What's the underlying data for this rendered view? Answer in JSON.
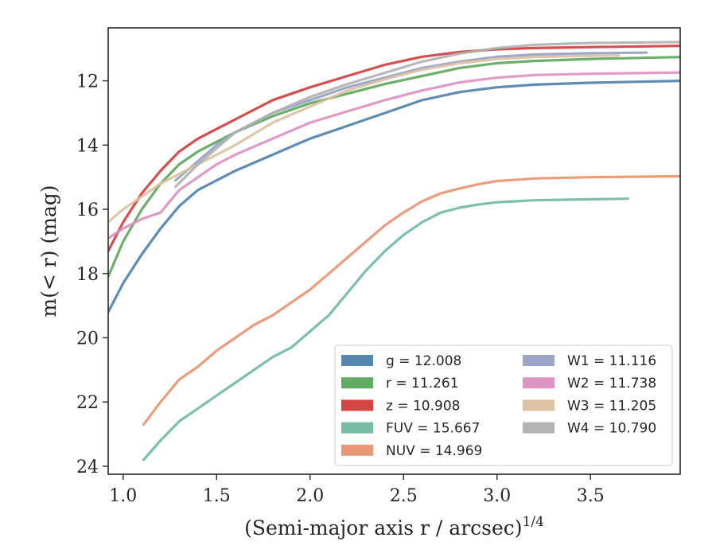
{
  "chart_data": {
    "type": "line",
    "title": "",
    "xlabel": "(Semi-major axis r / arcsec)",
    "xlabel_exponent": "1/4",
    "ylabel": "m(< r) (mag)",
    "xlim": [
      0.92,
      3.98
    ],
    "ylim": [
      24.25,
      10.35
    ],
    "y_inverted": true,
    "grid": false,
    "legend_position": "lower-right",
    "x_ticks": [
      {
        "value": 1.0,
        "label": "1.0"
      },
      {
        "value": 1.5,
        "label": "1.5"
      },
      {
        "value": 2.0,
        "label": "2.0"
      },
      {
        "value": 2.5,
        "label": "2.5"
      },
      {
        "value": 3.0,
        "label": "3.0"
      },
      {
        "value": 3.5,
        "label": "3.5"
      }
    ],
    "y_ticks": [
      {
        "value": 12,
        "label": "12"
      },
      {
        "value": 14,
        "label": "14"
      },
      {
        "value": 16,
        "label": "16"
      },
      {
        "value": 18,
        "label": "18"
      },
      {
        "value": 20,
        "label": "20"
      },
      {
        "value": 22,
        "label": "22"
      },
      {
        "value": 24,
        "label": "24"
      }
    ],
    "series": [
      {
        "name": "g",
        "legend_label": "g = 12.008",
        "color": "#4c7fab",
        "x": [
          0.92,
          1.0,
          1.1,
          1.2,
          1.3,
          1.4,
          1.5,
          1.6,
          1.8,
          2.0,
          2.2,
          2.4,
          2.6,
          2.8,
          3.0,
          3.2,
          3.5,
          3.98
        ],
        "y": [
          19.2,
          18.3,
          17.4,
          16.6,
          15.9,
          15.4,
          15.1,
          14.8,
          14.3,
          13.8,
          13.4,
          13.0,
          12.6,
          12.35,
          12.2,
          12.12,
          12.06,
          12.0
        ]
      },
      {
        "name": "r",
        "legend_label": "r = 11.261",
        "color": "#5aa65a",
        "x": [
          0.92,
          1.0,
          1.1,
          1.2,
          1.3,
          1.4,
          1.5,
          1.6,
          1.8,
          2.0,
          2.2,
          2.4,
          2.6,
          2.8,
          3.0,
          3.2,
          3.5,
          3.98
        ],
        "y": [
          18.1,
          17.0,
          16.0,
          15.2,
          14.6,
          14.2,
          13.9,
          13.6,
          13.1,
          12.7,
          12.4,
          12.1,
          11.85,
          11.6,
          11.45,
          11.38,
          11.32,
          11.26
        ]
      },
      {
        "name": "z",
        "legend_label": "z = 10.908",
        "color": "#d23c3c",
        "x": [
          0.92,
          1.0,
          1.1,
          1.2,
          1.3,
          1.4,
          1.5,
          1.6,
          1.8,
          2.0,
          2.2,
          2.4,
          2.6,
          2.8,
          3.0,
          3.2,
          3.5,
          3.98
        ],
        "y": [
          17.3,
          16.4,
          15.5,
          14.8,
          14.2,
          13.8,
          13.5,
          13.2,
          12.6,
          12.2,
          11.85,
          11.5,
          11.25,
          11.1,
          11.02,
          10.98,
          10.95,
          10.91
        ]
      },
      {
        "name": "FUV",
        "legend_label": "FUV = 15.667",
        "color": "#6fb9a1",
        "x": [
          1.11,
          1.2,
          1.3,
          1.4,
          1.5,
          1.6,
          1.7,
          1.8,
          1.9,
          2.0,
          2.1,
          2.2,
          2.3,
          2.4,
          2.5,
          2.6,
          2.7,
          2.8,
          2.9,
          3.0,
          3.2,
          3.4,
          3.7
        ],
        "y": [
          23.8,
          23.2,
          22.6,
          22.2,
          21.8,
          21.4,
          21.0,
          20.6,
          20.3,
          19.8,
          19.3,
          18.6,
          17.9,
          17.3,
          16.8,
          16.4,
          16.1,
          15.95,
          15.85,
          15.78,
          15.72,
          15.7,
          15.67
        ]
      },
      {
        "name": "NUV",
        "legend_label": "NUV = 14.969",
        "color": "#e8926e",
        "x": [
          1.11,
          1.2,
          1.3,
          1.4,
          1.5,
          1.6,
          1.7,
          1.8,
          1.9,
          2.0,
          2.1,
          2.2,
          2.3,
          2.4,
          2.5,
          2.6,
          2.7,
          2.8,
          2.9,
          3.0,
          3.2,
          3.5,
          3.98
        ],
        "y": [
          22.7,
          22.0,
          21.3,
          20.9,
          20.4,
          20.0,
          19.6,
          19.3,
          18.9,
          18.5,
          18.0,
          17.5,
          17.0,
          16.5,
          16.1,
          15.75,
          15.5,
          15.35,
          15.22,
          15.12,
          15.04,
          15.0,
          14.97
        ]
      },
      {
        "name": "W1",
        "legend_label": "W1 = 11.116",
        "color": "#96a0c4",
        "x": [
          1.28,
          1.4,
          1.5,
          1.6,
          1.8,
          2.0,
          2.2,
          2.4,
          2.6,
          2.8,
          3.0,
          3.2,
          3.5,
          3.8
        ],
        "y": [
          15.1,
          14.5,
          14.0,
          13.6,
          13.0,
          12.6,
          12.2,
          11.9,
          11.6,
          11.4,
          11.25,
          11.18,
          11.14,
          11.12
        ]
      },
      {
        "name": "W2",
        "legend_label": "W2 = 11.738",
        "color": "#dd8fc0",
        "x": [
          0.92,
          1.0,
          1.1,
          1.2,
          1.3,
          1.4,
          1.5,
          1.6,
          1.8,
          2.0,
          2.2,
          2.4,
          2.6,
          2.8,
          3.0,
          3.2,
          3.5,
          3.98
        ],
        "y": [
          16.9,
          16.6,
          16.3,
          16.1,
          15.4,
          15.0,
          14.6,
          14.3,
          13.8,
          13.3,
          12.95,
          12.6,
          12.3,
          12.05,
          11.9,
          11.82,
          11.78,
          11.74
        ]
      },
      {
        "name": "W3",
        "legend_label": "W3 = 11.205",
        "color": "#dbc09e",
        "x": [
          0.92,
          1.0,
          1.1,
          1.2,
          1.3,
          1.4,
          1.5,
          1.6,
          1.8,
          2.0,
          2.2,
          2.4,
          2.6,
          2.8,
          3.0,
          3.2,
          3.5,
          3.65
        ],
        "y": [
          16.4,
          16.0,
          15.6,
          15.2,
          14.9,
          14.6,
          14.3,
          14.0,
          13.3,
          12.8,
          12.3,
          11.95,
          11.65,
          11.45,
          11.32,
          11.26,
          11.22,
          11.21
        ]
      },
      {
        "name": "W4",
        "legend_label": "W4 = 10.790",
        "color": "#b0b0b0",
        "x": [
          1.28,
          1.4,
          1.5,
          1.6,
          1.8,
          2.0,
          2.2,
          2.4,
          2.6,
          2.8,
          3.0,
          3.2,
          3.5,
          3.98
        ],
        "y": [
          15.3,
          14.6,
          14.1,
          13.6,
          13.0,
          12.5,
          12.1,
          11.75,
          11.4,
          11.15,
          10.98,
          10.88,
          10.82,
          10.79
        ]
      }
    ],
    "legend_columns": [
      [
        "g",
        "r",
        "z",
        "FUV",
        "NUV"
      ],
      [
        "W1",
        "W2",
        "W3",
        "W4"
      ]
    ]
  }
}
